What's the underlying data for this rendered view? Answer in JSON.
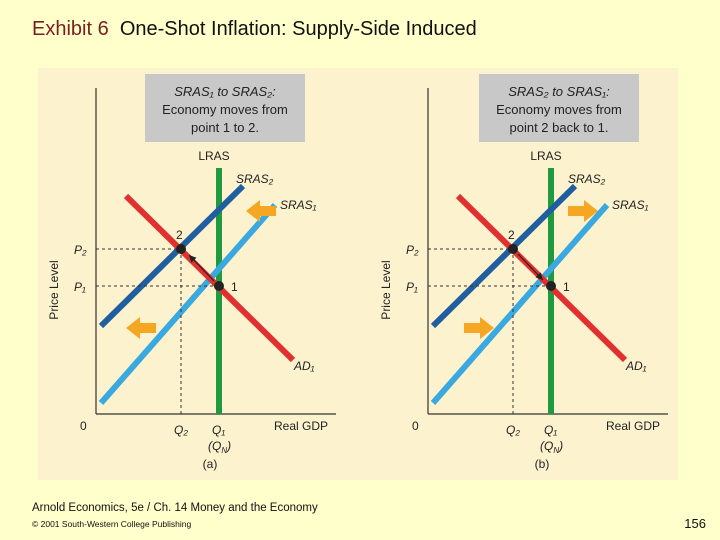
{
  "slide": {
    "title_prefix": "Exhibit 6",
    "title_main": "One-Shot Inflation: Supply-Side Induced",
    "footer_book": "Arnold Economics, 5e / Ch. 14  Money and the Economy",
    "footer_copyright": "© 2001 South-Western College Publishing",
    "page_number": "156"
  },
  "panels": [
    {
      "id": "a",
      "caption": "(a)",
      "box_lines": [
        "SRAS₁ to SRAS₂:",
        "Economy moves from",
        "point 1 to 2."
      ],
      "labels": {
        "lras": "LRAS",
        "sras2": "SRAS₂",
        "sras1": "SRAS₁",
        "ad1": "AD₁",
        "p2": "P₂",
        "p1": "P₁",
        "point2": "2",
        "point1": "1",
        "origin": "0",
        "q2": "Q₂",
        "q1": "Q₁",
        "qn": "(Q",
        "qn_sub": "N",
        "qn_close": ")",
        "ylabel": "Price Level",
        "xlabel": "Real GDP"
      },
      "shift_direction": "left"
    },
    {
      "id": "b",
      "caption": "(b)",
      "box_lines": [
        "SRAS₂ to SRAS₁:",
        "Economy moves from",
        "point 2 back to 1."
      ],
      "labels": {
        "lras": "LRAS",
        "sras2": "SRAS₂",
        "sras1": "SRAS₁",
        "ad1": "AD₁",
        "p2": "P₂",
        "p1": "P₁",
        "point2": "2",
        "point1": "1",
        "origin": "0",
        "q2": "Q₂",
        "q1": "Q₁",
        "qn": "(Q",
        "qn_sub": "N",
        "qn_close": ")",
        "ylabel": "Price Level",
        "xlabel": "Real GDP"
      },
      "shift_direction": "right"
    }
  ],
  "colors": {
    "sras1": "#3aa9e0",
    "sras2": "#1f5fa0",
    "ad": "#e03030",
    "lras": "#1f9a40",
    "box_fill": "#c8c8c8",
    "arrow": "#f5a623",
    "panel_bg": "#fdf2ce"
  }
}
